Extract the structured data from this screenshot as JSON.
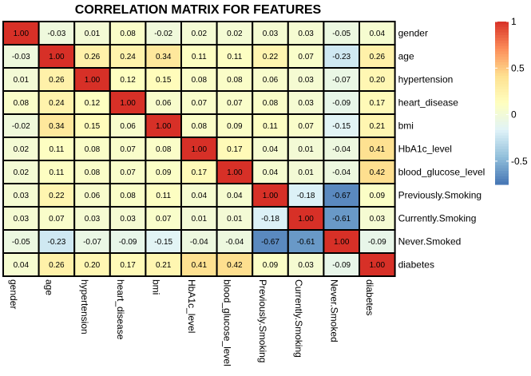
{
  "chart_data": {
    "type": "heatmap",
    "title": "CORRELATION MATRIX FOR FEATURES",
    "row_labels": [
      "gender",
      "age",
      "hypertension",
      "heart_disease",
      "bmi",
      "HbA1c_level",
      "blood_glucose_level",
      "Previously.Smoking",
      "Currently.Smoking",
      "Never.Smoked",
      "diabetes"
    ],
    "col_labels": [
      "gender",
      "age",
      "hypertension",
      "heart_disease",
      "bmi",
      "HbA1c_level",
      "blood_glucose_level",
      "Previously.Smoking",
      "Currently.Smoking",
      "Never.Smoked",
      "diabetes"
    ],
    "values": [
      [
        1.0,
        -0.03,
        0.01,
        0.08,
        -0.02,
        0.02,
        0.02,
        0.03,
        0.03,
        -0.05,
        0.04
      ],
      [
        -0.03,
        1.0,
        0.26,
        0.24,
        0.34,
        0.11,
        0.11,
        0.22,
        0.07,
        -0.23,
        0.26
      ],
      [
        0.01,
        0.26,
        1.0,
        0.12,
        0.15,
        0.08,
        0.08,
        0.06,
        0.03,
        -0.07,
        0.2
      ],
      [
        0.08,
        0.24,
        0.12,
        1.0,
        0.06,
        0.07,
        0.07,
        0.08,
        0.03,
        -0.09,
        0.17
      ],
      [
        -0.02,
        0.34,
        0.15,
        0.06,
        1.0,
        0.08,
        0.09,
        0.11,
        0.07,
        -0.15,
        0.21
      ],
      [
        0.02,
        0.11,
        0.08,
        0.07,
        0.08,
        1.0,
        0.17,
        0.04,
        0.01,
        -0.04,
        0.41
      ],
      [
        0.02,
        0.11,
        0.08,
        0.07,
        0.09,
        0.17,
        1.0,
        0.04,
        0.01,
        -0.04,
        0.42
      ],
      [
        0.03,
        0.22,
        0.06,
        0.08,
        0.11,
        0.04,
        0.04,
        1.0,
        -0.18,
        -0.67,
        0.09
      ],
      [
        0.03,
        0.07,
        0.03,
        0.03,
        0.07,
        0.01,
        0.01,
        -0.18,
        1.0,
        -0.61,
        0.03
      ],
      [
        -0.05,
        -0.23,
        -0.07,
        -0.09,
        -0.15,
        -0.04,
        -0.04,
        -0.67,
        -0.61,
        1.0,
        -0.09
      ],
      [
        0.04,
        0.26,
        0.2,
        0.17,
        0.21,
        0.41,
        0.42,
        0.09,
        0.03,
        -0.09,
        1.0
      ]
    ],
    "legend": {
      "ticks": [
        1,
        0.5,
        0,
        -0.5
      ],
      "tick_labels": [
        "1",
        "0.5",
        "0",
        "-0.5"
      ],
      "range": [
        -0.75,
        1.0
      ],
      "position": "right"
    },
    "colorscale": [
      "#4575b4",
      "#91bfdb",
      "#e0f3f8",
      "#ffffbf",
      "#fee090",
      "#fc8d59",
      "#d73027"
    ]
  }
}
